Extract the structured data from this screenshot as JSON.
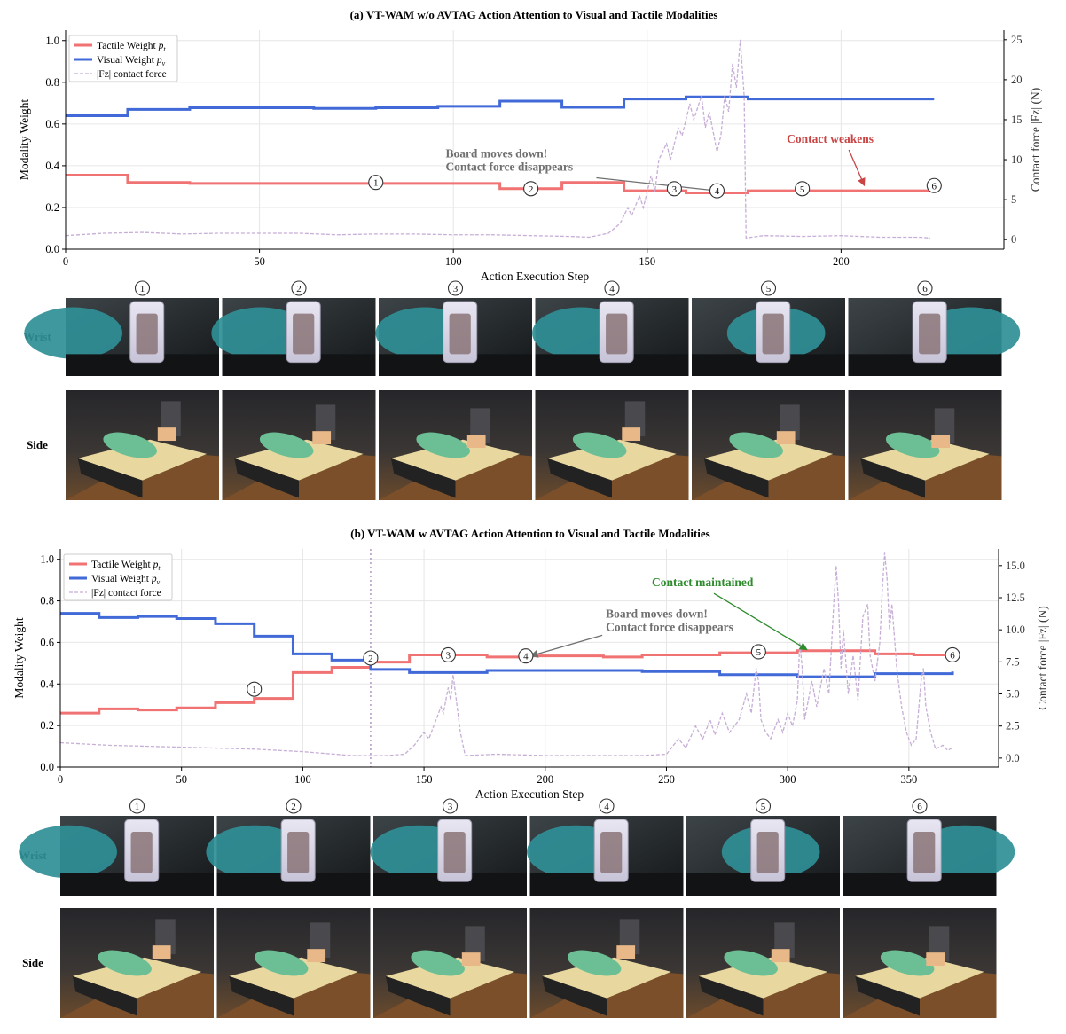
{
  "chart_data": [
    {
      "type": "line",
      "title": "(a) VT-WAM w/o AVTAG Action Attention to Visual and Tactile Modalities",
      "xlabel": "Action Execution Step",
      "ylabel": "Modality Weight",
      "y2label": "Contact force |Fz| (N)",
      "xlim": [
        0,
        242
      ],
      "ylim": [
        0.0,
        1.05
      ],
      "y2lim": [
        -1.2,
        26.2
      ],
      "xticks": [
        "0",
        "50",
        "100",
        "150",
        "200"
      ],
      "yticks": [
        "0.0",
        "0.2",
        "0.4",
        "0.6",
        "0.8",
        "1.0"
      ],
      "y2ticks": [
        "0",
        "5",
        "10",
        "15",
        "20",
        "25"
      ],
      "grid": true,
      "legend": {
        "position": "top-left",
        "entries": [
          "Tactile Weight p_t",
          "Visual Weight p_v",
          "|Fz| contact force"
        ]
      },
      "series": [
        {
          "name": "Tactile Weight p_t",
          "color": "#f07272",
          "axis": "left",
          "steps": [
            [
              0,
              0.355
            ],
            [
              16,
              0.32
            ],
            [
              32,
              0.315
            ],
            [
              112,
              0.29
            ],
            [
              128,
              0.32
            ],
            [
              144,
              0.28
            ],
            [
              160,
              0.27
            ],
            [
              176,
              0.28
            ],
            [
              224,
              0.28
            ]
          ]
        },
        {
          "name": "Visual Weight p_v",
          "color": "#4169d8",
          "axis": "left",
          "steps": [
            [
              0,
              0.64
            ],
            [
              16,
              0.67
            ],
            [
              32,
              0.678
            ],
            [
              64,
              0.675
            ],
            [
              80,
              0.678
            ],
            [
              96,
              0.685
            ],
            [
              112,
              0.71
            ],
            [
              128,
              0.68
            ],
            [
              144,
              0.72
            ],
            [
              160,
              0.73
            ],
            [
              176,
              0.72
            ],
            [
              224,
              0.72
            ]
          ]
        },
        {
          "name": "|Fz| contact force",
          "color": "#c7aed6",
          "axis": "right",
          "style": "dashed",
          "points": [
            [
              0,
              0.5
            ],
            [
              10,
              0.8
            ],
            [
              20,
              0.9
            ],
            [
              30,
              0.7
            ],
            [
              40,
              0.8
            ],
            [
              50,
              0.8
            ],
            [
              60,
              0.8
            ],
            [
              70,
              0.6
            ],
            [
              80,
              0.7
            ],
            [
              90,
              0.7
            ],
            [
              100,
              0.6
            ],
            [
              110,
              0.6
            ],
            [
              120,
              0.5
            ],
            [
              130,
              0.4
            ],
            [
              135,
              0.3
            ],
            [
              140,
              0.8
            ],
            [
              143,
              2
            ],
            [
              145,
              4
            ],
            [
              146,
              3
            ],
            [
              148,
              5.5
            ],
            [
              149,
              4
            ],
            [
              151,
              8
            ],
            [
              152,
              6
            ],
            [
              153,
              10
            ],
            [
              155,
              12
            ],
            [
              156,
              10
            ],
            [
              158,
              14
            ],
            [
              159,
              13
            ],
            [
              161,
              17
            ],
            [
              162,
              15
            ],
            [
              164,
              18
            ],
            [
              165,
              14
            ],
            [
              166,
              16
            ],
            [
              168,
              11
            ],
            [
              169,
              13
            ],
            [
              170,
              18
            ],
            [
              171,
              16
            ],
            [
              172,
              22
            ],
            [
              173,
              19
            ],
            [
              174,
              25
            ],
            [
              175,
              18
            ],
            [
              175.5,
              0.2
            ],
            [
              180,
              0.5
            ],
            [
              190,
              0.4
            ],
            [
              200,
              0.5
            ],
            [
              210,
              0.3
            ],
            [
              220,
              0.3
            ],
            [
              223,
              0.2
            ]
          ]
        }
      ],
      "markers": [
        {
          "label": "1",
          "x": 80,
          "y": 0.32
        },
        {
          "label": "2",
          "x": 120,
          "y": 0.29
        },
        {
          "label": "3",
          "x": 157,
          "y": 0.29
        },
        {
          "label": "4",
          "x": 168,
          "y": 0.28
        },
        {
          "label": "5",
          "x": 190,
          "y": 0.29
        },
        {
          "label": "6",
          "x": 224,
          "y": 0.305
        }
      ],
      "annotations": [
        {
          "lines": [
            "Board moves down!",
            "Contact force disappears"
          ],
          "color": "#707070",
          "text_at": [
            98,
            0.44
          ],
          "arrow_to": [
            168,
            0.28
          ]
        },
        {
          "lines": [
            "Contact weakens"
          ],
          "color": "#c94545",
          "text_at": [
            186,
            0.51
          ],
          "arrow_to": [
            206,
            0.305
          ]
        }
      ]
    },
    {
      "type": "line",
      "title": "(b) VT-WAM w AVTAG Action Attention to Visual and Tactile Modalities",
      "xlabel": "Action Execution Step",
      "ylabel": "Modality Weight",
      "y2label": "Contact force |Fz| (N)",
      "xlim": [
        0,
        387
      ],
      "ylim": [
        0.0,
        1.05
      ],
      "y2lim": [
        -0.7,
        16.3
      ],
      "xticks": [
        "0",
        "50",
        "100",
        "150",
        "200",
        "250",
        "300",
        "350"
      ],
      "yticks": [
        "0.0",
        "0.2",
        "0.4",
        "0.6",
        "0.8",
        "1.0"
      ],
      "y2ticks": [
        "0.0",
        "2.5",
        "5.0",
        "7.5",
        "10.0",
        "12.5",
        "15.0"
      ],
      "grid": true,
      "vline_x": 128,
      "legend": {
        "position": "top-left",
        "entries": [
          "Tactile Weight p_t",
          "Visual Weight p_v",
          "|Fz| contact force"
        ]
      },
      "series": [
        {
          "name": "Tactile Weight p_t",
          "color": "#f07272",
          "axis": "left",
          "steps": [
            [
              0,
              0.26
            ],
            [
              16,
              0.28
            ],
            [
              32,
              0.275
            ],
            [
              48,
              0.285
            ],
            [
              64,
              0.31
            ],
            [
              80,
              0.33
            ],
            [
              96,
              0.455
            ],
            [
              112,
              0.48
            ],
            [
              128,
              0.505
            ],
            [
              144,
              0.54
            ],
            [
              160,
              0.54
            ],
            [
              176,
              0.53
            ],
            [
              192,
              0.535
            ],
            [
              224,
              0.53
            ],
            [
              240,
              0.54
            ],
            [
              272,
              0.55
            ],
            [
              304,
              0.56
            ],
            [
              336,
              0.545
            ],
            [
              352,
              0.54
            ],
            [
              368,
              0.54
            ]
          ]
        },
        {
          "name": "Visual Weight p_v",
          "color": "#4169d8",
          "axis": "left",
          "steps": [
            [
              0,
              0.74
            ],
            [
              16,
              0.72
            ],
            [
              32,
              0.725
            ],
            [
              48,
              0.715
            ],
            [
              64,
              0.69
            ],
            [
              80,
              0.63
            ],
            [
              96,
              0.545
            ],
            [
              112,
              0.515
            ],
            [
              128,
              0.47
            ],
            [
              144,
              0.455
            ],
            [
              176,
              0.465
            ],
            [
              224,
              0.465
            ],
            [
              240,
              0.46
            ],
            [
              272,
              0.445
            ],
            [
              304,
              0.435
            ],
            [
              336,
              0.45
            ],
            [
              368,
              0.46
            ]
          ]
        },
        {
          "name": "|Fz| contact force",
          "color": "#c7aed6",
          "axis": "right",
          "style": "dashed",
          "points": [
            [
              0,
              1.2
            ],
            [
              20,
              1
            ],
            [
              40,
              0.9
            ],
            [
              60,
              0.8
            ],
            [
              80,
              0.7
            ],
            [
              100,
              0.5
            ],
            [
              120,
              0.2
            ],
            [
              135,
              0.2
            ],
            [
              142,
              0.3
            ],
            [
              146,
              1
            ],
            [
              150,
              2
            ],
            [
              152,
              1.5
            ],
            [
              155,
              3
            ],
            [
              157,
              4
            ],
            [
              158,
              3.5
            ],
            [
              160,
              5.5
            ],
            [
              161,
              4.5
            ],
            [
              162,
              6.5
            ],
            [
              163,
              5
            ],
            [
              165,
              2
            ],
            [
              167,
              0.2
            ],
            [
              180,
              0.3
            ],
            [
              200,
              0.2
            ],
            [
              220,
              0.2
            ],
            [
              240,
              0.2
            ],
            [
              250,
              0.3
            ],
            [
              255,
              1.5
            ],
            [
              258,
              0.8
            ],
            [
              262,
              2.5
            ],
            [
              265,
              1.5
            ],
            [
              268,
              3
            ],
            [
              270,
              1.8
            ],
            [
              273,
              3.5
            ],
            [
              276,
              2
            ],
            [
              280,
              3
            ],
            [
              283,
              5
            ],
            [
              285,
              3.5
            ],
            [
              287,
              7
            ],
            [
              288,
              6
            ],
            [
              289,
              3
            ],
            [
              291,
              2
            ],
            [
              293,
              1.5
            ],
            [
              296,
              3
            ],
            [
              298,
              2
            ],
            [
              300,
              3.5
            ],
            [
              302,
              2.5
            ],
            [
              304,
              4.5
            ],
            [
              305,
              9
            ],
            [
              306,
              7
            ],
            [
              307,
              3
            ],
            [
              310,
              6
            ],
            [
              312,
              4
            ],
            [
              315,
              7
            ],
            [
              317,
              5
            ],
            [
              319,
              12
            ],
            [
              320,
              15
            ],
            [
              321,
              12
            ],
            [
              322,
              7
            ],
            [
              323,
              10
            ],
            [
              325,
              5
            ],
            [
              327,
              8
            ],
            [
              329,
              4.5
            ],
            [
              331,
              11
            ],
            [
              333,
              12
            ],
            [
              334,
              8
            ],
            [
              336,
              6
            ],
            [
              338,
              9
            ],
            [
              339,
              13
            ],
            [
              340,
              16
            ],
            [
              341,
              14
            ],
            [
              342,
              10
            ],
            [
              343,
              12
            ],
            [
              345,
              7
            ],
            [
              347,
              4
            ],
            [
              349,
              2
            ],
            [
              351,
              1
            ],
            [
              353,
              1.5
            ],
            [
              355,
              6
            ],
            [
              356,
              7
            ],
            [
              357,
              4
            ],
            [
              359,
              2
            ],
            [
              361,
              0.7
            ],
            [
              364,
              1
            ],
            [
              366,
              0.6
            ],
            [
              368,
              0.8
            ]
          ]
        }
      ],
      "markers": [
        {
          "label": "1",
          "x": 80,
          "y": 0.375
        },
        {
          "label": "2",
          "x": 128,
          "y": 0.525
        },
        {
          "label": "3",
          "x": 160,
          "y": 0.54
        },
        {
          "label": "4",
          "x": 192,
          "y": 0.535
        },
        {
          "label": "5",
          "x": 288,
          "y": 0.555
        },
        {
          "label": "6",
          "x": 368,
          "y": 0.54
        }
      ],
      "annotations": [
        {
          "lines": [
            "Board moves down!",
            "Contact force disappears"
          ],
          "color": "#707070",
          "text_at": [
            225,
            0.72
          ],
          "arrow_to": [
            194,
            0.535
          ]
        },
        {
          "lines": [
            "Contact maintained"
          ],
          "color": "#2e8b2e",
          "text_at": [
            244,
            0.87
          ],
          "arrow_to": [
            308,
            0.565
          ]
        }
      ]
    }
  ],
  "thumbnail_rows": [
    {
      "panel": 0,
      "step_labels": [
        "1",
        "2",
        "3",
        "4",
        "5",
        "6"
      ],
      "rows": [
        "Wrist",
        "Side"
      ]
    },
    {
      "panel": 1,
      "step_labels": [
        "1",
        "2",
        "3",
        "4",
        "5",
        "6"
      ],
      "rows": [
        "Wrist",
        "Side"
      ]
    }
  ]
}
